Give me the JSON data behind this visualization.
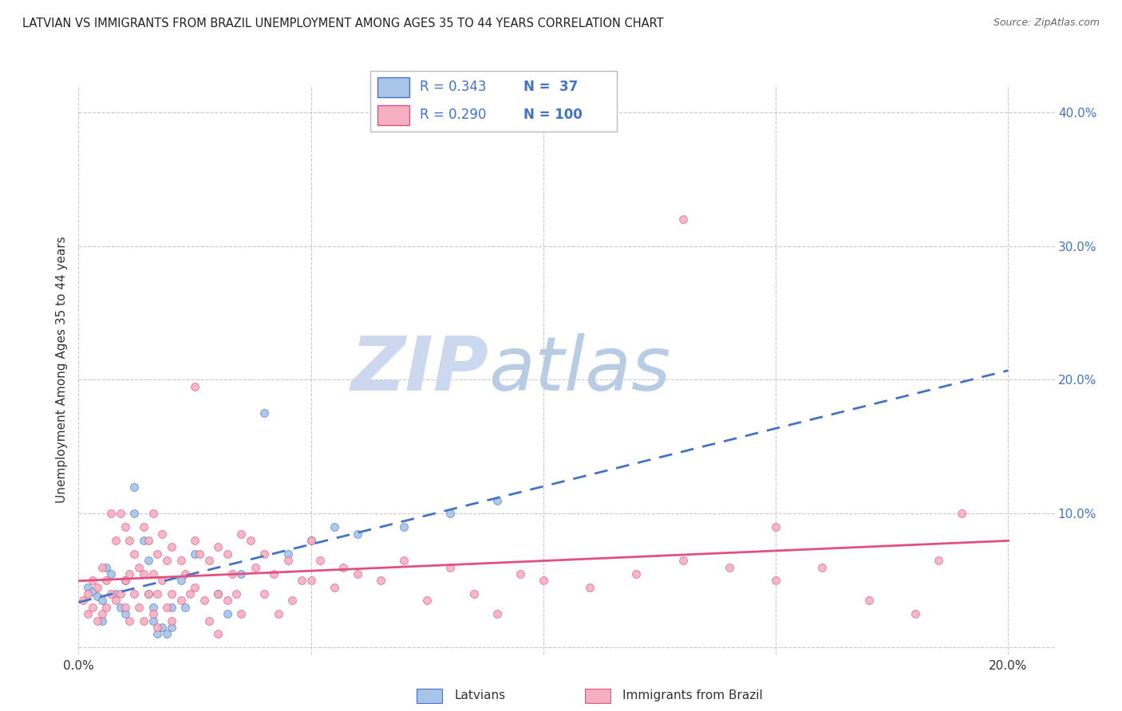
{
  "title": "LATVIAN VS IMMIGRANTS FROM BRAZIL UNEMPLOYMENT AMONG AGES 35 TO 44 YEARS CORRELATION CHART",
  "source": "Source: ZipAtlas.com",
  "ylabel": "Unemployment Among Ages 35 to 44 years",
  "xlabel_latvians": "Latvians",
  "xlabel_brazil": "Immigrants from Brazil",
  "xlim": [
    0.0,
    0.21
  ],
  "ylim": [
    -0.005,
    0.42
  ],
  "x_ticks": [
    0.0,
    0.05,
    0.1,
    0.15,
    0.2
  ],
  "y_ticks": [
    0.0,
    0.1,
    0.2,
    0.3,
    0.4
  ],
  "R_latvian": 0.343,
  "N_latvian": 37,
  "R_brazil": 0.29,
  "N_brazil": 100,
  "color_latvian": "#a8c4e8",
  "color_brazil": "#f5afc0",
  "line_color_latvian": "#4472c4",
  "line_color_brazil": "#e05080",
  "watermark_zip": "ZIP",
  "watermark_atlas": "atlas",
  "watermark_color_zip": "#c8d8ee",
  "watermark_color_atlas": "#b8c8de",
  "legend_text_color": "#4472c4",
  "latvian_points": [
    [
      0.002,
      0.045
    ],
    [
      0.003,
      0.042
    ],
    [
      0.004,
      0.038
    ],
    [
      0.005,
      0.035
    ],
    [
      0.005,
      0.02
    ],
    [
      0.006,
      0.06
    ],
    [
      0.007,
      0.055
    ],
    [
      0.008,
      0.04
    ],
    [
      0.009,
      0.03
    ],
    [
      0.01,
      0.025
    ],
    [
      0.01,
      0.05
    ],
    [
      0.012,
      0.12
    ],
    [
      0.012,
      0.1
    ],
    [
      0.014,
      0.08
    ],
    [
      0.015,
      0.04
    ],
    [
      0.015,
      0.065
    ],
    [
      0.016,
      0.03
    ],
    [
      0.016,
      0.02
    ],
    [
      0.017,
      0.01
    ],
    [
      0.018,
      0.015
    ],
    [
      0.019,
      0.01
    ],
    [
      0.02,
      0.03
    ],
    [
      0.02,
      0.015
    ],
    [
      0.022,
      0.05
    ],
    [
      0.023,
      0.03
    ],
    [
      0.025,
      0.07
    ],
    [
      0.03,
      0.04
    ],
    [
      0.032,
      0.025
    ],
    [
      0.035,
      0.055
    ],
    [
      0.04,
      0.175
    ],
    [
      0.045,
      0.07
    ],
    [
      0.05,
      0.08
    ],
    [
      0.055,
      0.09
    ],
    [
      0.06,
      0.085
    ],
    [
      0.07,
      0.09
    ],
    [
      0.08,
      0.1
    ],
    [
      0.09,
      0.11
    ]
  ],
  "brazil_points": [
    [
      0.001,
      0.035
    ],
    [
      0.002,
      0.04
    ],
    [
      0.002,
      0.025
    ],
    [
      0.003,
      0.05
    ],
    [
      0.003,
      0.03
    ],
    [
      0.004,
      0.045
    ],
    [
      0.004,
      0.02
    ],
    [
      0.005,
      0.06
    ],
    [
      0.005,
      0.025
    ],
    [
      0.006,
      0.05
    ],
    [
      0.006,
      0.03
    ],
    [
      0.007,
      0.1
    ],
    [
      0.007,
      0.04
    ],
    [
      0.008,
      0.08
    ],
    [
      0.008,
      0.035
    ],
    [
      0.009,
      0.1
    ],
    [
      0.009,
      0.04
    ],
    [
      0.01,
      0.09
    ],
    [
      0.01,
      0.05
    ],
    [
      0.01,
      0.03
    ],
    [
      0.011,
      0.08
    ],
    [
      0.011,
      0.055
    ],
    [
      0.011,
      0.02
    ],
    [
      0.012,
      0.07
    ],
    [
      0.012,
      0.04
    ],
    [
      0.013,
      0.06
    ],
    [
      0.013,
      0.03
    ],
    [
      0.014,
      0.09
    ],
    [
      0.014,
      0.055
    ],
    [
      0.014,
      0.02
    ],
    [
      0.015,
      0.08
    ],
    [
      0.015,
      0.04
    ],
    [
      0.016,
      0.1
    ],
    [
      0.016,
      0.055
    ],
    [
      0.016,
      0.025
    ],
    [
      0.017,
      0.07
    ],
    [
      0.017,
      0.04
    ],
    [
      0.017,
      0.015
    ],
    [
      0.018,
      0.085
    ],
    [
      0.018,
      0.05
    ],
    [
      0.019,
      0.065
    ],
    [
      0.019,
      0.03
    ],
    [
      0.02,
      0.075
    ],
    [
      0.02,
      0.04
    ],
    [
      0.02,
      0.02
    ],
    [
      0.022,
      0.065
    ],
    [
      0.022,
      0.035
    ],
    [
      0.023,
      0.055
    ],
    [
      0.024,
      0.04
    ],
    [
      0.025,
      0.195
    ],
    [
      0.025,
      0.08
    ],
    [
      0.025,
      0.045
    ],
    [
      0.026,
      0.07
    ],
    [
      0.027,
      0.035
    ],
    [
      0.028,
      0.065
    ],
    [
      0.028,
      0.02
    ],
    [
      0.03,
      0.075
    ],
    [
      0.03,
      0.04
    ],
    [
      0.03,
      0.01
    ],
    [
      0.032,
      0.07
    ],
    [
      0.032,
      0.035
    ],
    [
      0.033,
      0.055
    ],
    [
      0.034,
      0.04
    ],
    [
      0.035,
      0.085
    ],
    [
      0.035,
      0.025
    ],
    [
      0.037,
      0.08
    ],
    [
      0.038,
      0.06
    ],
    [
      0.04,
      0.07
    ],
    [
      0.04,
      0.04
    ],
    [
      0.042,
      0.055
    ],
    [
      0.043,
      0.025
    ],
    [
      0.045,
      0.065
    ],
    [
      0.046,
      0.035
    ],
    [
      0.048,
      0.05
    ],
    [
      0.05,
      0.08
    ],
    [
      0.05,
      0.05
    ],
    [
      0.052,
      0.065
    ],
    [
      0.055,
      0.045
    ],
    [
      0.057,
      0.06
    ],
    [
      0.06,
      0.055
    ],
    [
      0.065,
      0.05
    ],
    [
      0.07,
      0.065
    ],
    [
      0.075,
      0.035
    ],
    [
      0.08,
      0.06
    ],
    [
      0.085,
      0.04
    ],
    [
      0.09,
      0.025
    ],
    [
      0.095,
      0.055
    ],
    [
      0.1,
      0.05
    ],
    [
      0.11,
      0.045
    ],
    [
      0.12,
      0.055
    ],
    [
      0.13,
      0.065
    ],
    [
      0.14,
      0.06
    ],
    [
      0.15,
      0.05
    ],
    [
      0.16,
      0.06
    ],
    [
      0.17,
      0.035
    ],
    [
      0.18,
      0.025
    ],
    [
      0.13,
      0.32
    ],
    [
      0.19,
      0.1
    ],
    [
      0.185,
      0.065
    ],
    [
      0.15,
      0.09
    ]
  ]
}
